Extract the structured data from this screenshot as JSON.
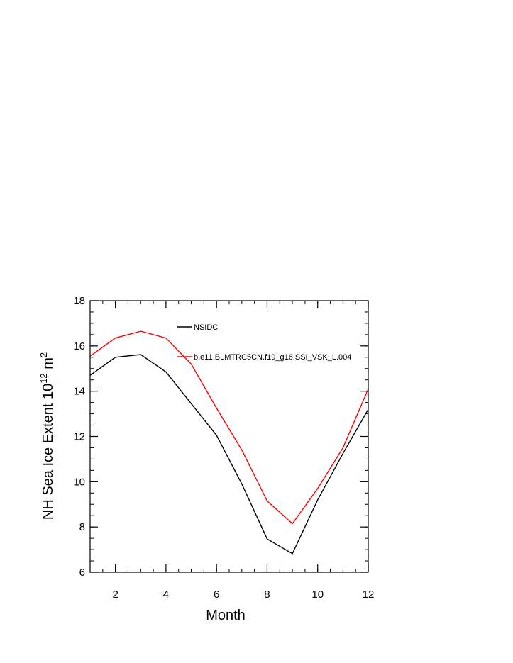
{
  "chart_data": {
    "type": "line",
    "title": "",
    "xlabel": "Month",
    "ylabel_main": "NH Sea Ice Extent 10",
    "ylabel_exp": "12",
    "ylabel_unit": " m",
    "ylabel_unit_exp": "2",
    "xlim": [
      1,
      12
    ],
    "ylim": [
      6,
      18
    ],
    "xticks": [
      2,
      4,
      6,
      8,
      10,
      12
    ],
    "yticks": [
      6,
      8,
      10,
      12,
      14,
      16,
      18
    ],
    "x": [
      1,
      2,
      3,
      4,
      5,
      6,
      7,
      8,
      9,
      10,
      11,
      12
    ],
    "series": [
      {
        "name": "NSIDC",
        "color": "#000000",
        "values": [
          14.7,
          15.5,
          15.62,
          14.85,
          13.45,
          12.05,
          9.9,
          7.47,
          6.82,
          9.2,
          11.25,
          13.2
        ]
      },
      {
        "name": "b.e11.BLMTRC5CN.f19_g16.SSI_VSK_L.004",
        "color": "#ff0000",
        "values": [
          15.55,
          16.35,
          16.65,
          16.35,
          15.2,
          13.25,
          11.4,
          9.15,
          8.15,
          9.7,
          11.5,
          14.1
        ]
      }
    ],
    "legend": "upper-middle inside plot",
    "grid": false
  }
}
